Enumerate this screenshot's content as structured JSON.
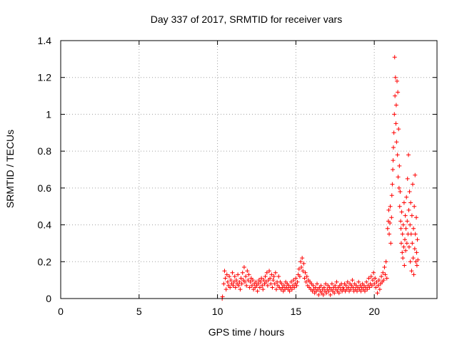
{
  "chart_data": {
    "type": "scatter",
    "title": "Day 337 of 2017, SRMTID for receiver vars",
    "xlabel": "GPS time / hours",
    "ylabel": "SRMTID / TECUs",
    "xlim": [
      0,
      24
    ],
    "ylim": [
      0,
      1.4
    ],
    "x_ticks": [
      0,
      5,
      10,
      15,
      20
    ],
    "x_tick_labels": [
      "0",
      "5",
      "10",
      "15",
      "20"
    ],
    "y_ticks": [
      0,
      0.2,
      0.4,
      0.6,
      0.8,
      1,
      1.2,
      1.4
    ],
    "y_tick_labels": [
      "0",
      "0.2",
      "0.4",
      "0.6",
      "0.8",
      "1",
      "1.2",
      "1.4"
    ],
    "grid": true,
    "marker": "plus",
    "color": "#ff0000",
    "series": [
      {
        "name": "SRMTID",
        "points": [
          [
            10.3,
            0.0
          ],
          [
            10.32,
            0.01
          ],
          [
            10.4,
            0.08
          ],
          [
            10.45,
            0.15
          ],
          [
            10.5,
            0.11
          ],
          [
            10.55,
            0.05
          ],
          [
            10.6,
            0.13
          ],
          [
            10.65,
            0.09
          ],
          [
            10.7,
            0.07
          ],
          [
            10.75,
            0.12
          ],
          [
            10.8,
            0.06
          ],
          [
            10.85,
            0.1
          ],
          [
            10.9,
            0.08
          ],
          [
            10.95,
            0.14
          ],
          [
            11.0,
            0.07
          ],
          [
            11.05,
            0.09
          ],
          [
            11.1,
            0.12
          ],
          [
            11.15,
            0.06
          ],
          [
            11.2,
            0.1
          ],
          [
            11.25,
            0.08
          ],
          [
            11.3,
            0.13
          ],
          [
            11.35,
            0.07
          ],
          [
            11.4,
            0.09
          ],
          [
            11.45,
            0.05
          ],
          [
            11.5,
            0.11
          ],
          [
            11.55,
            0.08
          ],
          [
            11.6,
            0.14
          ],
          [
            11.65,
            0.1
          ],
          [
            11.7,
            0.17
          ],
          [
            11.75,
            0.09
          ],
          [
            11.8,
            0.12
          ],
          [
            11.85,
            0.07
          ],
          [
            11.9,
            0.15
          ],
          [
            11.95,
            0.1
          ],
          [
            12.0,
            0.13
          ],
          [
            12.05,
            0.06
          ],
          [
            12.1,
            0.09
          ],
          [
            12.15,
            0.11
          ],
          [
            12.2,
            0.07
          ],
          [
            12.25,
            0.1
          ],
          [
            12.3,
            0.05
          ],
          [
            12.35,
            0.08
          ],
          [
            12.4,
            0.06
          ],
          [
            12.45,
            0.09
          ],
          [
            12.5,
            0.07
          ],
          [
            12.55,
            0.04
          ],
          [
            12.6,
            0.08
          ],
          [
            12.65,
            0.1
          ],
          [
            12.7,
            0.06
          ],
          [
            12.75,
            0.09
          ],
          [
            12.8,
            0.11
          ],
          [
            12.85,
            0.07
          ],
          [
            12.9,
            0.05
          ],
          [
            12.95,
            0.1
          ],
          [
            13.0,
            0.08
          ],
          [
            13.05,
            0.12
          ],
          [
            13.1,
            0.09
          ],
          [
            13.15,
            0.14
          ],
          [
            13.2,
            0.07
          ],
          [
            13.25,
            0.1
          ],
          [
            13.3,
            0.15
          ],
          [
            13.35,
            0.11
          ],
          [
            13.4,
            0.08
          ],
          [
            13.45,
            0.13
          ],
          [
            13.5,
            0.06
          ],
          [
            13.55,
            0.1
          ],
          [
            13.6,
            0.12
          ],
          [
            13.65,
            0.08
          ],
          [
            13.7,
            0.14
          ],
          [
            13.75,
            0.05
          ],
          [
            13.8,
            0.09
          ],
          [
            13.85,
            0.07
          ],
          [
            13.9,
            0.12
          ],
          [
            13.95,
            0.06
          ],
          [
            14.0,
            0.09
          ],
          [
            14.05,
            0.05
          ],
          [
            14.1,
            0.08
          ],
          [
            14.15,
            0.06
          ],
          [
            14.2,
            0.04
          ],
          [
            14.25,
            0.07
          ],
          [
            14.3,
            0.05
          ],
          [
            14.35,
            0.09
          ],
          [
            14.4,
            0.06
          ],
          [
            14.45,
            0.08
          ],
          [
            14.5,
            0.05
          ],
          [
            14.55,
            0.07
          ],
          [
            14.6,
            0.04
          ],
          [
            14.65,
            0.06
          ],
          [
            14.7,
            0.09
          ],
          [
            14.75,
            0.05
          ],
          [
            14.8,
            0.07
          ],
          [
            14.85,
            0.1
          ],
          [
            14.9,
            0.06
          ],
          [
            14.95,
            0.08
          ],
          [
            15.0,
            0.11
          ],
          [
            15.05,
            0.07
          ],
          [
            15.1,
            0.09
          ],
          [
            15.15,
            0.13
          ],
          [
            15.2,
            0.16
          ],
          [
            15.25,
            0.12
          ],
          [
            15.3,
            0.2
          ],
          [
            15.35,
            0.17
          ],
          [
            15.4,
            0.22
          ],
          [
            15.45,
            0.15
          ],
          [
            15.5,
            0.19
          ],
          [
            15.55,
            0.11
          ],
          [
            15.6,
            0.14
          ],
          [
            15.65,
            0.09
          ],
          [
            15.7,
            0.12
          ],
          [
            15.75,
            0.07
          ],
          [
            15.8,
            0.1
          ],
          [
            15.85,
            0.06
          ],
          [
            15.9,
            0.09
          ],
          [
            15.95,
            0.05
          ],
          [
            16.0,
            0.08
          ],
          [
            16.05,
            0.04
          ],
          [
            16.1,
            0.07
          ],
          [
            16.15,
            0.05
          ],
          [
            16.2,
            0.03
          ],
          [
            16.25,
            0.06
          ],
          [
            16.3,
            0.04
          ],
          [
            16.35,
            0.08
          ],
          [
            16.4,
            0.05
          ],
          [
            16.45,
            0.02
          ],
          [
            16.5,
            0.06
          ],
          [
            16.55,
            0.04
          ],
          [
            16.6,
            0.07
          ],
          [
            16.65,
            0.03
          ],
          [
            16.7,
            0.05
          ],
          [
            16.75,
            0.02
          ],
          [
            16.8,
            0.06
          ],
          [
            16.85,
            0.04
          ],
          [
            16.9,
            0.08
          ],
          [
            16.95,
            0.03
          ],
          [
            17.0,
            0.05
          ],
          [
            17.05,
            0.07
          ],
          [
            17.1,
            0.04
          ],
          [
            17.15,
            0.06
          ],
          [
            17.2,
            0.02
          ],
          [
            17.25,
            0.05
          ],
          [
            17.3,
            0.08
          ],
          [
            17.35,
            0.04
          ],
          [
            17.4,
            0.06
          ],
          [
            17.45,
            0.03
          ],
          [
            17.5,
            0.07
          ],
          [
            17.55,
            0.05
          ],
          [
            17.6,
            0.09
          ],
          [
            17.65,
            0.04
          ],
          [
            17.7,
            0.06
          ],
          [
            17.75,
            0.03
          ],
          [
            17.8,
            0.07
          ],
          [
            17.85,
            0.05
          ],
          [
            17.9,
            0.08
          ],
          [
            17.95,
            0.04
          ],
          [
            18.0,
            0.06
          ],
          [
            18.05,
            0.05
          ],
          [
            18.1,
            0.08
          ],
          [
            18.15,
            0.04
          ],
          [
            18.2,
            0.07
          ],
          [
            18.25,
            0.05
          ],
          [
            18.3,
            0.09
          ],
          [
            18.35,
            0.06
          ],
          [
            18.4,
            0.04
          ],
          [
            18.45,
            0.08
          ],
          [
            18.5,
            0.05
          ],
          [
            18.55,
            0.07
          ],
          [
            18.6,
            0.1
          ],
          [
            18.65,
            0.06
          ],
          [
            18.7,
            0.04
          ],
          [
            18.75,
            0.08
          ],
          [
            18.8,
            0.05
          ],
          [
            18.85,
            0.07
          ],
          [
            18.9,
            0.04
          ],
          [
            18.95,
            0.06
          ],
          [
            19.0,
            0.09
          ],
          [
            19.05,
            0.05
          ],
          [
            19.1,
            0.07
          ],
          [
            19.15,
            0.04
          ],
          [
            19.2,
            0.06
          ],
          [
            19.25,
            0.08
          ],
          [
            19.3,
            0.05
          ],
          [
            19.35,
            0.07
          ],
          [
            19.4,
            0.04
          ],
          [
            19.45,
            0.06
          ],
          [
            19.5,
            0.09
          ],
          [
            19.55,
            0.05
          ],
          [
            19.6,
            0.07
          ],
          [
            19.65,
            0.11
          ],
          [
            19.7,
            0.06
          ],
          [
            19.75,
            0.08
          ],
          [
            19.8,
            0.12
          ],
          [
            19.85,
            0.07
          ],
          [
            19.9,
            0.1
          ],
          [
            19.95,
            0.14
          ],
          [
            20.0,
            0.08
          ],
          [
            20.05,
            0.11
          ],
          [
            20.1,
            0.06
          ],
          [
            20.15,
            0.09
          ],
          [
            20.2,
            0.03
          ],
          [
            20.25,
            0.07
          ],
          [
            20.3,
            0.1
          ],
          [
            20.35,
            0.05
          ],
          [
            20.4,
            0.08
          ],
          [
            20.45,
            0.12
          ],
          [
            20.5,
            0.09
          ],
          [
            20.55,
            0.14
          ],
          [
            20.6,
            0.1
          ],
          [
            20.65,
            0.17
          ],
          [
            20.7,
            0.13
          ],
          [
            20.75,
            0.2
          ],
          [
            20.8,
            0.11
          ],
          [
            20.85,
            0.38
          ],
          [
            20.9,
            0.42
          ],
          [
            20.92,
            0.48
          ],
          [
            20.95,
            0.35
          ],
          [
            21.0,
            0.41
          ],
          [
            21.02,
            0.5
          ],
          [
            21.05,
            0.3
          ],
          [
            21.1,
            0.44
          ],
          [
            21.12,
            0.56
          ],
          [
            21.15,
            0.62
          ],
          [
            21.18,
            0.7
          ],
          [
            21.2,
            0.75
          ],
          [
            21.22,
            0.82
          ],
          [
            21.25,
            0.9
          ],
          [
            21.28,
            1.0
          ],
          [
            21.3,
            1.31
          ],
          [
            21.32,
            1.1
          ],
          [
            21.35,
            1.2
          ],
          [
            21.38,
            0.95
          ],
          [
            21.4,
            1.05
          ],
          [
            21.42,
            0.85
          ],
          [
            21.45,
            1.18
          ],
          [
            21.48,
            0.78
          ],
          [
            21.5,
            1.12
          ],
          [
            21.52,
            0.66
          ],
          [
            21.55,
            0.92
          ],
          [
            21.58,
            0.6
          ],
          [
            21.6,
            0.72
          ],
          [
            21.62,
            0.5
          ],
          [
            21.65,
            0.58
          ],
          [
            21.68,
            0.42
          ],
          [
            21.7,
            0.38
          ],
          [
            21.72,
            0.3
          ],
          [
            21.75,
            0.47
          ],
          [
            21.78,
            0.25
          ],
          [
            21.8,
            0.35
          ],
          [
            21.82,
            0.22
          ],
          [
            21.85,
            0.4
          ],
          [
            21.88,
            0.28
          ],
          [
            21.9,
            0.52
          ],
          [
            21.92,
            0.18
          ],
          [
            21.95,
            0.32
          ],
          [
            21.98,
            0.45
          ],
          [
            22.0,
            0.26
          ],
          [
            22.02,
            0.38
          ],
          [
            22.05,
            0.55
          ],
          [
            22.08,
            0.3
          ],
          [
            22.1,
            0.42
          ],
          [
            22.12,
            0.65
          ],
          [
            22.15,
            0.35
          ],
          [
            22.18,
            0.78
          ],
          [
            22.2,
            0.48
          ],
          [
            22.22,
            0.28
          ],
          [
            22.25,
            0.58
          ],
          [
            22.28,
            0.4
          ],
          [
            22.3,
            0.2
          ],
          [
            22.32,
            0.52
          ],
          [
            22.35,
            0.35
          ],
          [
            22.38,
            0.15
          ],
          [
            22.4,
            0.45
          ],
          [
            22.42,
            0.3
          ],
          [
            22.45,
            0.62
          ],
          [
            22.48,
            0.22
          ],
          [
            22.5,
            0.38
          ],
          [
            22.52,
            0.13
          ],
          [
            22.55,
            0.5
          ],
          [
            22.58,
            0.27
          ],
          [
            22.6,
            0.67
          ],
          [
            22.62,
            0.35
          ],
          [
            22.65,
            0.2
          ],
          [
            22.68,
            0.44
          ],
          [
            22.7,
            0.25
          ],
          [
            22.72,
            0.18
          ],
          [
            22.75,
            0.32
          ],
          [
            22.78,
            0.21
          ]
        ]
      }
    ]
  }
}
